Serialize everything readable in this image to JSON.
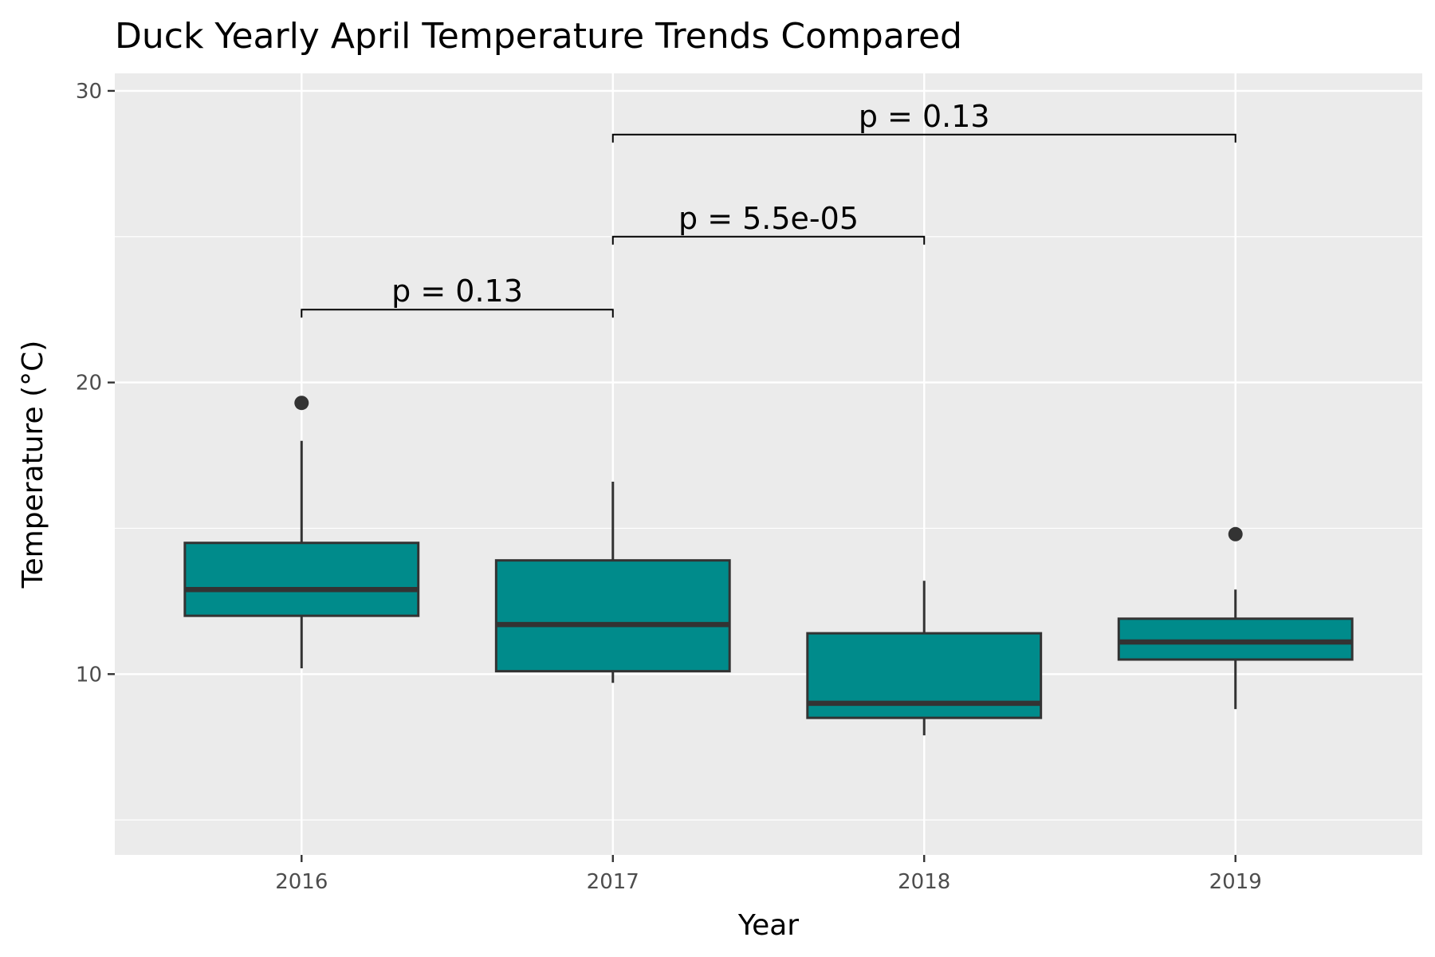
{
  "chart_data": {
    "type": "boxplot",
    "title": "Duck Yearly April Temperature Trends Compared",
    "xlabel": "Year",
    "ylabel": "Temperature (°C)",
    "categories": [
      "2016",
      "2017",
      "2018",
      "2019"
    ],
    "ylim": [
      3.8,
      30.6
    ],
    "yticks": [
      10,
      20,
      30
    ],
    "grid": true,
    "fill_color": "#008B8B",
    "line_color": "#333333",
    "panel_color": "#EBEBEB",
    "boxes": [
      {
        "category": "2016",
        "whisker_low": 10.2,
        "q1": 12.0,
        "median": 12.9,
        "q3": 14.5,
        "whisker_high": 18.0,
        "outliers": [
          19.3
        ]
      },
      {
        "category": "2017",
        "whisker_low": 9.7,
        "q1": 10.1,
        "median": 11.7,
        "q3": 13.9,
        "whisker_high": 16.6,
        "outliers": []
      },
      {
        "category": "2018",
        "whisker_low": 7.9,
        "q1": 8.5,
        "median": 9.0,
        "q3": 11.4,
        "whisker_high": 13.2,
        "outliers": []
      },
      {
        "category": "2019",
        "whisker_low": 8.8,
        "q1": 10.5,
        "median": 11.1,
        "q3": 11.9,
        "whisker_high": 12.9,
        "outliers": [
          14.8
        ]
      }
    ],
    "comparisons": [
      {
        "from": "2016",
        "to": "2017",
        "y": 22.5,
        "label": "p = 0.13"
      },
      {
        "from": "2017",
        "to": "2018",
        "y": 25.0,
        "label": "p = 5.5e-05"
      },
      {
        "from": "2017",
        "to": "2019",
        "y": 28.5,
        "label": "p = 0.13"
      }
    ]
  }
}
